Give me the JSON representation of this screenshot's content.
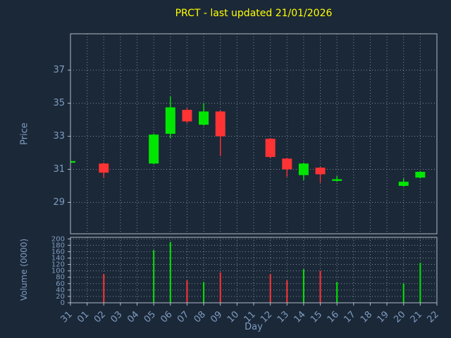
{
  "title": "PRCT - last updated 21/01/2026",
  "axes": {
    "price_label": "Price",
    "volume_label": "Volume (0000)",
    "x_label": "Day"
  },
  "colors": {
    "background": "#1b2838",
    "title": "#ffff00",
    "axis_text": "#7f9cbf",
    "frame": "#b0bac4",
    "grid": "#7e8b99",
    "up": "#00e600",
    "down": "#ff3333"
  },
  "chart_data": [
    {
      "type": "candlestick",
      "title": "PRCT - last updated 21/01/2026",
      "xlabel": "Day",
      "ylabel": "Price",
      "ylim": [
        27.1,
        39.2
      ],
      "yticks": [
        29,
        31,
        33,
        35,
        37
      ],
      "grid": true,
      "categories": [
        "31",
        "01",
        "02",
        "03",
        "04",
        "05",
        "06",
        "07",
        "08",
        "09",
        "10",
        "11",
        "12",
        "13",
        "14",
        "15",
        "16",
        "17",
        "18",
        "19",
        "20",
        "21",
        "22"
      ],
      "candles": [
        {
          "day": "31",
          "open": 31.4,
          "high": 31.5,
          "low": 31.35,
          "close": 31.5
        },
        {
          "day": "02",
          "open": 31.35,
          "high": 31.4,
          "low": 30.5,
          "close": 30.8
        },
        {
          "day": "05",
          "open": 31.35,
          "high": 33.15,
          "low": 31.3,
          "close": 33.1
        },
        {
          "day": "06",
          "open": 33.15,
          "high": 35.4,
          "low": 32.9,
          "close": 34.75
        },
        {
          "day": "07",
          "open": 34.6,
          "high": 34.7,
          "low": 33.8,
          "close": 33.9
        },
        {
          "day": "08",
          "open": 33.7,
          "high": 35.0,
          "low": 33.65,
          "close": 34.5
        },
        {
          "day": "09",
          "open": 34.5,
          "high": 34.55,
          "low": 31.8,
          "close": 33.0
        },
        {
          "day": "12",
          "open": 32.85,
          "high": 32.9,
          "low": 31.7,
          "close": 31.75
        },
        {
          "day": "13",
          "open": 31.65,
          "high": 31.7,
          "low": 30.55,
          "close": 31.0
        },
        {
          "day": "14",
          "open": 30.65,
          "high": 31.4,
          "low": 30.35,
          "close": 31.35
        },
        {
          "day": "15",
          "open": 31.1,
          "high": 31.15,
          "low": 30.2,
          "close": 30.7
        },
        {
          "day": "16",
          "open": 30.3,
          "high": 30.6,
          "low": 30.25,
          "close": 30.4
        },
        {
          "day": "20",
          "open": 30.0,
          "high": 30.45,
          "low": 29.95,
          "close": 30.25
        },
        {
          "day": "21",
          "open": 30.5,
          "high": 30.9,
          "low": 30.45,
          "close": 30.85
        }
      ]
    },
    {
      "type": "bar",
      "ylabel": "Volume (0000)",
      "ylim": [
        0,
        205
      ],
      "yticks": [
        0,
        20,
        40,
        60,
        80,
        100,
        120,
        140,
        160,
        180,
        200
      ],
      "grid": true,
      "bars": [
        {
          "day": "02",
          "value": 90,
          "dir": "down"
        },
        {
          "day": "05",
          "value": 165,
          "dir": "up"
        },
        {
          "day": "06",
          "value": 190,
          "dir": "up"
        },
        {
          "day": "07",
          "value": 70,
          "dir": "down"
        },
        {
          "day": "08",
          "value": 65,
          "dir": "up"
        },
        {
          "day": "09",
          "value": 95,
          "dir": "down"
        },
        {
          "day": "12",
          "value": 90,
          "dir": "down"
        },
        {
          "day": "13",
          "value": 70,
          "dir": "down"
        },
        {
          "day": "14",
          "value": 105,
          "dir": "up"
        },
        {
          "day": "15",
          "value": 100,
          "dir": "down"
        },
        {
          "day": "16",
          "value": 65,
          "dir": "up"
        },
        {
          "day": "20",
          "value": 60,
          "dir": "up"
        },
        {
          "day": "21",
          "value": 125,
          "dir": "up"
        }
      ]
    }
  ]
}
